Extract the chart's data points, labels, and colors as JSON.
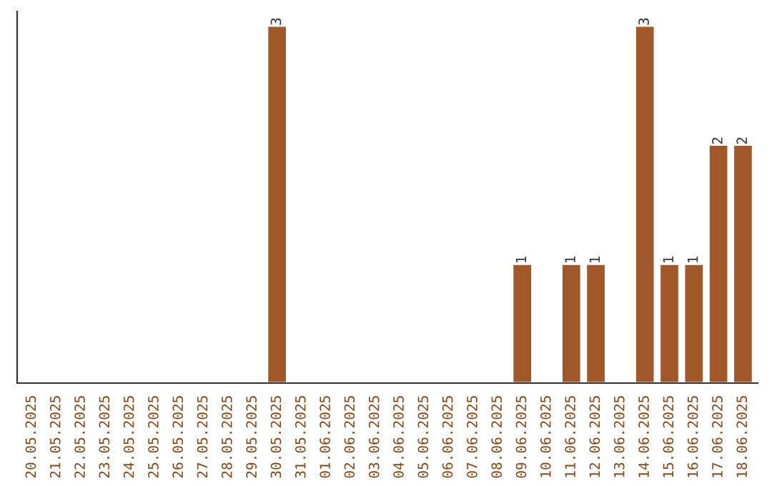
{
  "chart_data": {
    "type": "bar",
    "categories": [
      "20.05.2025",
      "21.05.2025",
      "22.05.2025",
      "23.05.2025",
      "24.05.2025",
      "25.05.2025",
      "26.05.2025",
      "27.05.2025",
      "28.05.2025",
      "29.05.2025",
      "30.05.2025",
      "31.05.2025",
      "01.06.2025",
      "02.06.2025",
      "03.06.2025",
      "04.06.2025",
      "05.06.2025",
      "06.06.2025",
      "07.06.2025",
      "08.06.2025",
      "09.06.2025",
      "10.06.2025",
      "11.06.2025",
      "12.06.2025",
      "13.06.2025",
      "14.06.2025",
      "15.06.2025",
      "16.06.2025",
      "17.06.2025",
      "18.06.2025"
    ],
    "values": [
      null,
      null,
      null,
      null,
      null,
      null,
      null,
      null,
      null,
      null,
      3,
      null,
      null,
      null,
      null,
      null,
      null,
      null,
      null,
      null,
      1,
      null,
      1,
      1,
      null,
      3,
      1,
      1,
      2,
      2
    ],
    "value_labels": [
      null,
      null,
      null,
      null,
      null,
      null,
      null,
      null,
      null,
      null,
      "3",
      null,
      null,
      null,
      null,
      null,
      null,
      null,
      null,
      null,
      "1",
      null,
      "1",
      "1",
      null,
      "3",
      "1",
      "1",
      "2",
      "2"
    ],
    "color": "#a0572a",
    "tick_labels": "x",
    "grid": false,
    "legend": false
  }
}
